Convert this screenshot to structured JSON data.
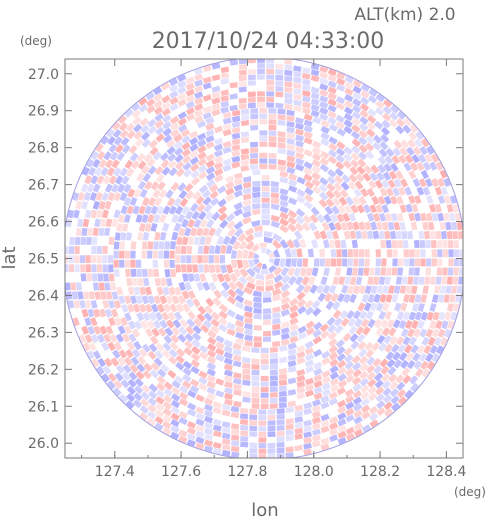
{
  "header": {
    "alt_label": "ALT(km) 2.0",
    "timestamp": "2017/10/24 04:33:00"
  },
  "chart_data": {
    "type": "heatmap",
    "title": "2017/10/24 04:33:00",
    "xlabel": "lon",
    "ylabel": "lat",
    "x_unit": "(deg)",
    "y_unit": "(deg)",
    "xlim": [
      127.25,
      128.45
    ],
    "ylim": [
      25.96,
      27.04
    ],
    "xticks": [
      "127.4",
      "127.6",
      "127.8",
      "128.0",
      "128.2",
      "128.4"
    ],
    "yticks": [
      "26.0",
      "26.1",
      "26.2",
      "26.3",
      "26.4",
      "26.5",
      "26.6",
      "26.7",
      "26.8",
      "26.9",
      "27.0"
    ],
    "radar_center": [
      127.85,
      26.5
    ],
    "coverage_radius_lat_deg": 0.545,
    "color_scale": {
      "negative": "#9c9cff",
      "zero": "#ffffff",
      "positive": "#ff9c9c"
    },
    "grid": false,
    "legend": "none"
  }
}
